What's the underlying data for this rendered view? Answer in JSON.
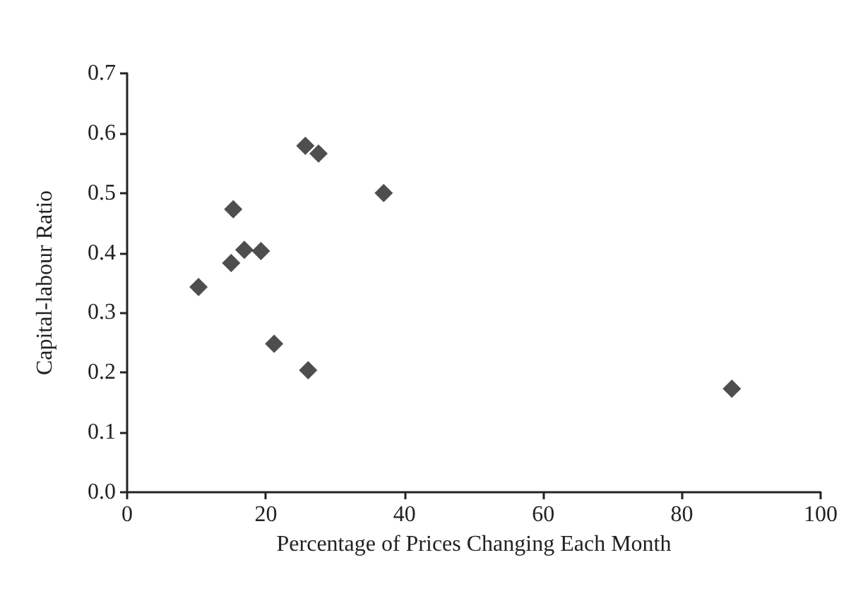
{
  "chart_data": {
    "type": "scatter",
    "xlabel": "Percentage of Prices Changing Each Month",
    "ylabel": "Capital-labour Ratio",
    "x": [
      10.3,
      15.0,
      15.3,
      16.9,
      19.3,
      21.2,
      25.7,
      27.6,
      26.1,
      37.0,
      87.2
    ],
    "values": [
      0.343,
      0.383,
      0.473,
      0.405,
      0.403,
      0.248,
      0.579,
      0.566,
      0.204,
      0.5,
      0.173
    ],
    "color": "#222222",
    "marker": "diamond",
    "xlim": [
      0,
      100
    ],
    "xticks": [
      0,
      20,
      40,
      60,
      80,
      100
    ],
    "ylim": [
      0,
      0.7
    ],
    "yticks": [
      {
        "value": 0,
        "label": "0.0"
      },
      {
        "value": 0.1,
        "label": "0.1"
      },
      {
        "value": 0.2,
        "label": "0.2"
      },
      {
        "value": 0.3,
        "label": "0.3"
      },
      {
        "value": 0.4,
        "label": "0.4"
      },
      {
        "value": 0.5,
        "label": "0.5"
      },
      {
        "value": 0.6,
        "label": "0.6"
      },
      {
        "value": 0.7,
        "label": "0.7"
      }
    ],
    "grid": false
  }
}
